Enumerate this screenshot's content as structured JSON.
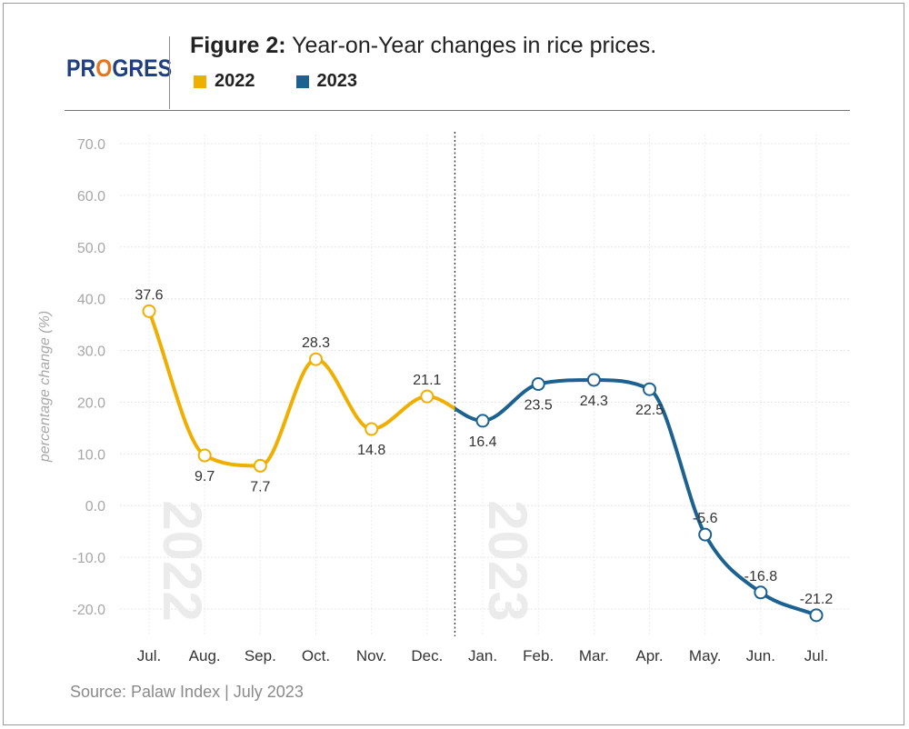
{
  "header": {
    "logo_pre": "PR",
    "logo_o": "O",
    "logo_post": "GRES",
    "title_bold": "Figure 2:",
    "title_rest": " Year-on-Year changes in rice prices.",
    "legend": [
      {
        "label": "2022",
        "color": "#f0ae00"
      },
      {
        "label": "2023",
        "color": "#1c6291"
      }
    ]
  },
  "footer": {
    "source": "Source: Palaw Index  |  July 2023"
  },
  "chart_data": {
    "type": "line",
    "ylabel": "percentage change (%)",
    "ylim": [
      -25,
      72
    ],
    "yticks": [
      70.0,
      60.0,
      50.0,
      40.0,
      30.0,
      20.0,
      10.0,
      0.0,
      -10.0,
      -20.0
    ],
    "ytick_labels": [
      "70.0",
      "60.0",
      "50.0",
      "40.0",
      "30.0",
      "20.0",
      "10.0",
      "0.0",
      "-10.0",
      "-20.0"
    ],
    "categories": [
      "Jul.",
      "Aug.",
      "Sep.",
      "Oct.",
      "Nov.",
      "Dec.",
      "Jan.",
      "Feb.",
      "Mar.",
      "Apr.",
      "May.",
      "Jun.",
      "Jul."
    ],
    "values": [
      37.6,
      9.7,
      7.7,
      28.3,
      14.8,
      21.1,
      16.4,
      23.5,
      24.3,
      22.5,
      -5.6,
      -16.8,
      -21.2
    ],
    "data_labels": [
      "37.6",
      "9.7",
      "7.7",
      "28.3",
      "14.8",
      "21.1",
      "16.4",
      "23.5",
      "24.3",
      "22.5",
      "-5.6",
      "-16.8",
      "-21.2"
    ],
    "label_positions": [
      "above",
      "below",
      "below",
      "above",
      "below",
      "above",
      "below",
      "below",
      "below",
      "below",
      "above",
      "above",
      "above"
    ],
    "series": [
      {
        "name": "2022",
        "from": 0,
        "to": 5,
        "color": "#f0ae00"
      },
      {
        "name": "2023",
        "from": 6,
        "to": 12,
        "color": "#1c6291"
      }
    ],
    "divider_between": [
      5,
      6
    ],
    "watermarks": [
      "2022",
      "2023"
    ],
    "grid": true
  }
}
